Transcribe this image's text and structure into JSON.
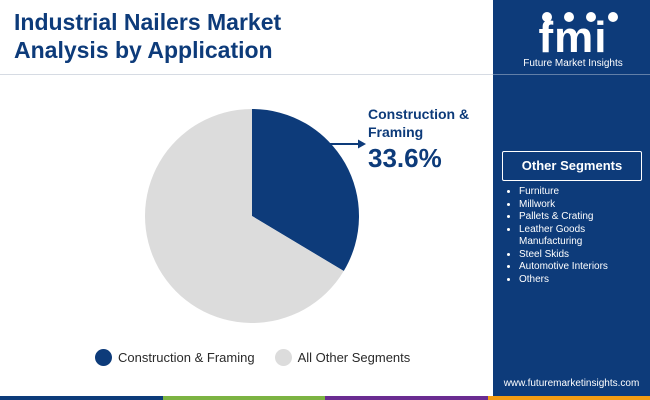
{
  "header": {
    "title_line1": "Industrial Nailers Market",
    "title_line2": "Analysis by Application"
  },
  "chart_data": {
    "type": "pie",
    "title": "Industrial Nailers Market Analysis by Application",
    "slices": [
      {
        "label": "Construction & Framing",
        "value": 33.6,
        "color": "#0d3b7a"
      },
      {
        "label": "All Other Segments",
        "value": 66.4,
        "color": "#dcdcdc"
      }
    ],
    "callout": {
      "label": "Construction & Framing",
      "value_text": "33.6%"
    },
    "legend_placement": "bottom"
  },
  "legend": {
    "items": [
      {
        "label": "Construction & Framing",
        "color": "#0d3b7a"
      },
      {
        "label": "All Other Segments",
        "color": "#dcdcdc"
      }
    ]
  },
  "brand": {
    "logo_letters": "fmi",
    "logo_caption": "Future Market Insights",
    "url": "www.futuremarketinsights.com",
    "panel_color": "#0d3b7a"
  },
  "other_segments": {
    "title": "Other Segments",
    "items": [
      "Furniture",
      "Millwork",
      "Pallets & Crating",
      "Leather Goods Manufacturing",
      "Steel Skids",
      "Automotive Interiors",
      "Others"
    ]
  },
  "bottom_bar_colors": [
    "#0d3b7a",
    "#7cb342",
    "#6a2c91",
    "#f39c12"
  ]
}
